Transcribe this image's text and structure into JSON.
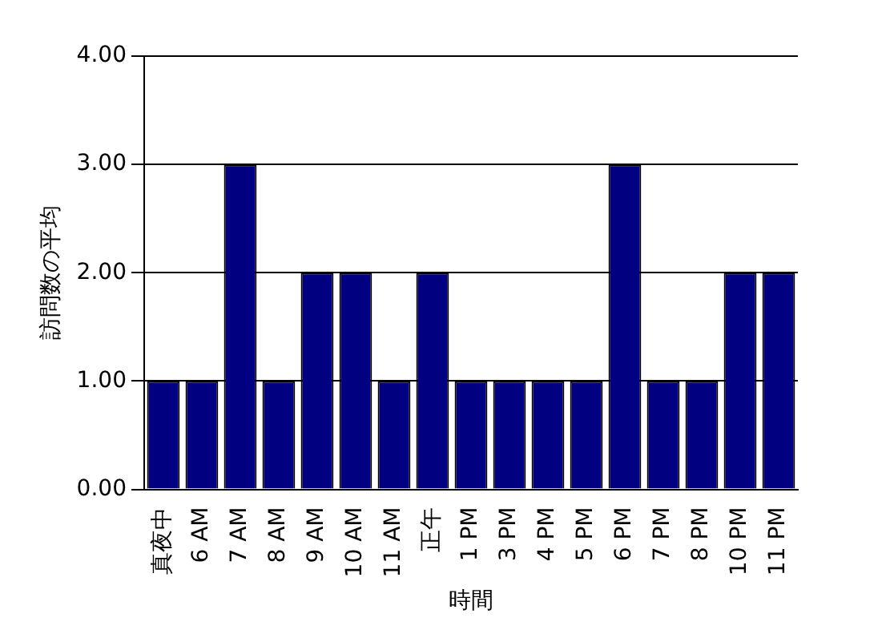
{
  "chart_data": {
    "type": "bar",
    "xlabel": "時間",
    "ylabel": "訪問数の平均",
    "categories": [
      "真夜中",
      "6 AM",
      "7 AM",
      "8 AM",
      "9 AM",
      "10 AM",
      "11 AM",
      "正午",
      "1 PM",
      "3 PM",
      "4 PM",
      "5 PM",
      "6 PM",
      "7 PM",
      "8 PM",
      "10 PM",
      "11 PM"
    ],
    "values": [
      1,
      1,
      3,
      1,
      2,
      2,
      1,
      2,
      1,
      1,
      1,
      1,
      3,
      1,
      1,
      2,
      2
    ],
    "color": "#000080",
    "ylim": [
      0,
      4
    ],
    "yticks": [
      {
        "value": 0,
        "label": "0.00"
      },
      {
        "value": 1,
        "label": "1.00"
      },
      {
        "value": 2,
        "label": "2.00"
      },
      {
        "value": 3,
        "label": "3.00"
      },
      {
        "value": 4,
        "label": "4.00"
      }
    ],
    "grid": "y",
    "legend": false
  }
}
